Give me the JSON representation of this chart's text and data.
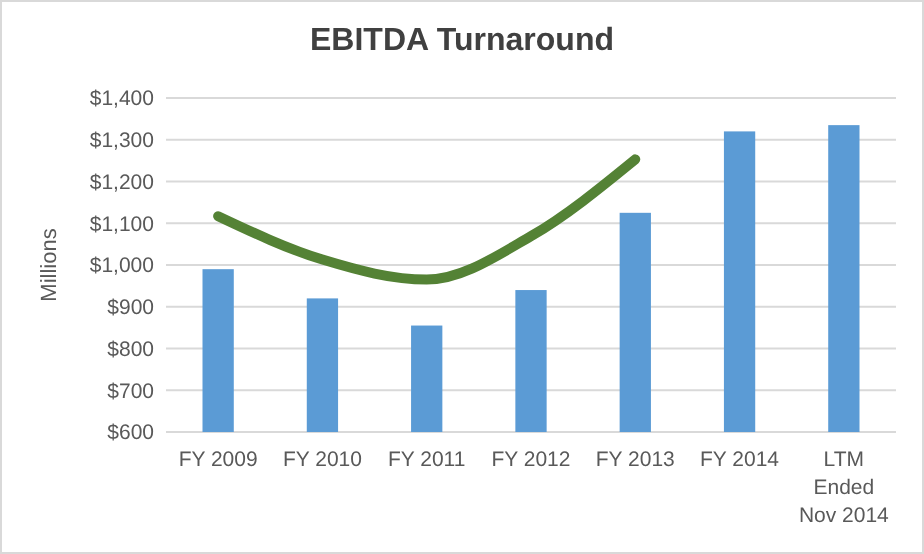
{
  "chart_data": {
    "type": "bar",
    "title": "EBITDA Turnaround",
    "ylabel": "Millions",
    "categories": [
      "FY 2009",
      "FY 2010",
      "FY 2011",
      "FY 2012",
      "FY 2013",
      "FY 2014",
      "LTM Ended Nov 2014"
    ],
    "series": [
      {
        "color": "#5b9bd5",
        "values": [
          990,
          920,
          855,
          940,
          1125,
          1320,
          1335
        ]
      },
      {
        "type": "line",
        "color": "#548235",
        "values": [
          1117,
          1013,
          965,
          1069,
          1253,
          null,
          null
        ]
      }
    ],
    "ylim": [
      600,
      1400
    ],
    "yticks": [
      {
        "value": 600,
        "label": "$600"
      },
      {
        "value": 700,
        "label": "$700"
      },
      {
        "value": 800,
        "label": "$800"
      },
      {
        "value": 900,
        "label": "$900"
      },
      {
        "value": 1000,
        "label": "$1,000"
      },
      {
        "value": 1100,
        "label": "$1,100"
      },
      {
        "value": 1200,
        "label": "$1,200"
      },
      {
        "value": 1300,
        "label": "$1,300"
      },
      {
        "value": 1400,
        "label": "$1,400"
      }
    ],
    "grid": "y"
  }
}
